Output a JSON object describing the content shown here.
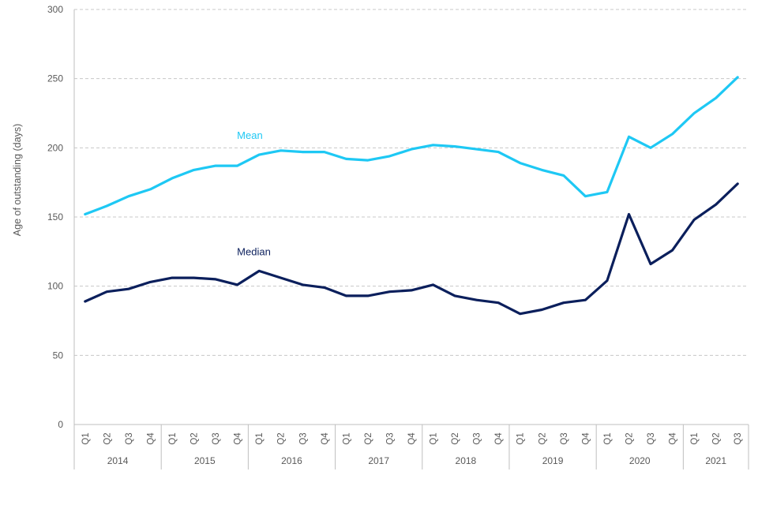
{
  "chart_data": {
    "type": "line",
    "title": "",
    "xlabel": "",
    "ylabel": "Age of outstanding (days)",
    "ylim": [
      0,
      300
    ],
    "yticks": [
      0,
      50,
      100,
      150,
      200,
      250,
      300
    ],
    "grid": true,
    "categories": [
      "Q1",
      "Q2",
      "Q3",
      "Q4",
      "Q1",
      "Q2",
      "Q3",
      "Q4",
      "Q1",
      "Q2",
      "Q3",
      "Q4",
      "Q1",
      "Q2",
      "Q3",
      "Q4",
      "Q1",
      "Q2",
      "Q3",
      "Q4",
      "Q1",
      "Q2",
      "Q3",
      "Q4",
      "Q1",
      "Q2",
      "Q3",
      "Q4",
      "Q1",
      "Q2",
      "Q3"
    ],
    "years": [
      {
        "label": "2014",
        "quarters": 4
      },
      {
        "label": "2015",
        "quarters": 4
      },
      {
        "label": "2016",
        "quarters": 4
      },
      {
        "label": "2017",
        "quarters": 4
      },
      {
        "label": "2018",
        "quarters": 4
      },
      {
        "label": "2019",
        "quarters": 4
      },
      {
        "label": "2020",
        "quarters": 4
      },
      {
        "label": "2021",
        "quarters": 3
      }
    ],
    "series": [
      {
        "name": "Mean",
        "color": "#1ec8f4",
        "label_index": 8,
        "values": [
          152,
          158,
          165,
          170,
          178,
          184,
          187,
          187,
          195,
          198,
          197,
          197,
          192,
          191,
          194,
          199,
          202,
          201,
          199,
          197,
          189,
          184,
          180,
          165,
          168,
          208,
          200,
          210,
          225,
          236,
          251
        ]
      },
      {
        "name": "Median",
        "color": "#0b1f5c",
        "label_index": 8,
        "values": [
          89,
          96,
          98,
          103,
          106,
          106,
          105,
          101,
          111,
          106,
          101,
          99,
          93,
          93,
          96,
          97,
          101,
          93,
          90,
          88,
          80,
          83,
          88,
          90,
          104,
          152,
          116,
          126,
          148,
          159,
          174
        ]
      }
    ]
  }
}
